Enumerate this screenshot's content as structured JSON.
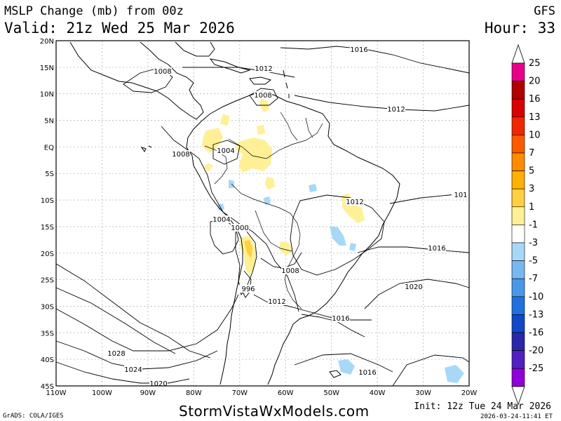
{
  "header": {
    "title": "MSLP Change (mb) from 00z",
    "model": "GFS",
    "valid": "Valid: 21z Wed 25 Mar 2026",
    "hour": "Hour: 33"
  },
  "footer": {
    "site": "StormVistaWxModels.com",
    "grads": "GrADS: COLA/IGES",
    "init": "Init: 12z Tue 24 Mar 2026",
    "timestamp": "2026-03-24-11:41 ET"
  },
  "map": {
    "lat_labels": [
      "20N",
      "15N",
      "10N",
      "5N",
      "EQ",
      "5S",
      "10S",
      "15S",
      "20S",
      "25S",
      "30S",
      "35S",
      "40S",
      "45S"
    ],
    "lon_labels": [
      "110W",
      "100W",
      "90W",
      "80W",
      "70W",
      "60W",
      "50W",
      "40W",
      "30W",
      "20W"
    ],
    "contour_labels": [
      "1016",
      "1012",
      "1008",
      "1008",
      "1012",
      "1008",
      "1004",
      "1012",
      "101",
      "1004",
      "1000",
      "1016",
      "1008",
      "996",
      "1020",
      "1012",
      "1016",
      "1028",
      "1024",
      "1016",
      "1020"
    ]
  },
  "colorbar": {
    "labels": [
      "25",
      "20",
      "16",
      "13",
      "10",
      "7",
      "5",
      "3",
      "1",
      "-1",
      "-3",
      "-5",
      "-7",
      "-10",
      "-13",
      "-16",
      "-20",
      "-25"
    ],
    "colors": [
      "#e8008a",
      "#b00000",
      "#d80000",
      "#f02800",
      "#ff5a00",
      "#ff8c00",
      "#ffb000",
      "#ffd040",
      "#fff096",
      "#ffffff",
      "#a8d8f8",
      "#78b8f0",
      "#4898e8",
      "#2070e0",
      "#1048c8",
      "#2828a8",
      "#5020c0",
      "#9000d8"
    ]
  }
}
